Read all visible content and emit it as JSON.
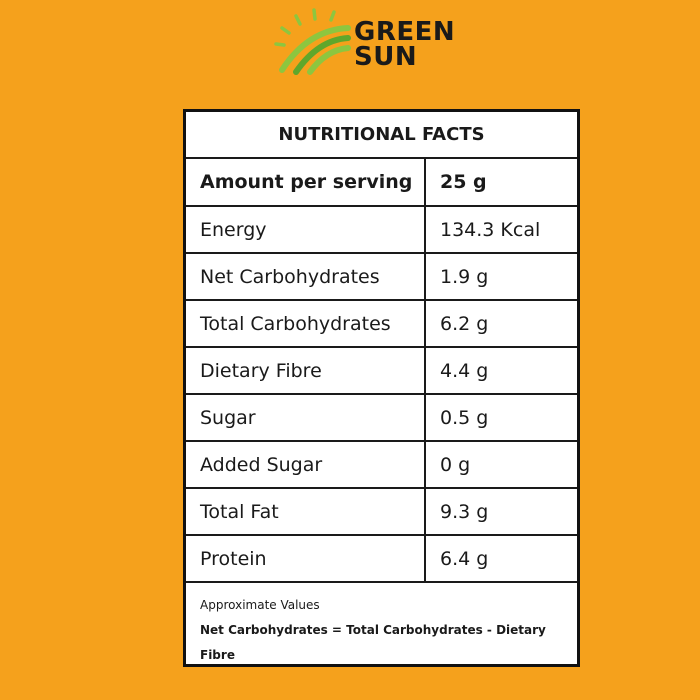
{
  "brand": {
    "line1": "GREEN",
    "line2": "SUN",
    "colors": {
      "light_green": "#8DC63F",
      "dark_green": "#5FA72B"
    }
  },
  "panel": {
    "title": "NUTRITIONAL FACTS",
    "header": {
      "label": "Amount per serving",
      "value": "25 g"
    },
    "rows": [
      {
        "label": "Energy",
        "value": "134.3 Kcal"
      },
      {
        "label": "Net Carbohydrates",
        "value": "1.9 g"
      },
      {
        "label": "Total Carbohydrates",
        "value": "6.2 g"
      },
      {
        "label": "Dietary Fibre",
        "value": "4.4 g"
      },
      {
        "label": "Sugar",
        "value": "0.5 g"
      },
      {
        "label": "Added Sugar",
        "value": "0 g"
      },
      {
        "label": "Total Fat",
        "value": "9.3 g"
      },
      {
        "label": "Protein",
        "value": "6.4 g"
      }
    ],
    "note": "Approximate Values",
    "formula": "Net Carbohydrates = Total Carbohydrates - Dietary Fibre"
  },
  "colors": {
    "background": "#F5A11C",
    "border": "#111111",
    "panel": "#FFFFFF",
    "text": "#1A1A1A"
  }
}
